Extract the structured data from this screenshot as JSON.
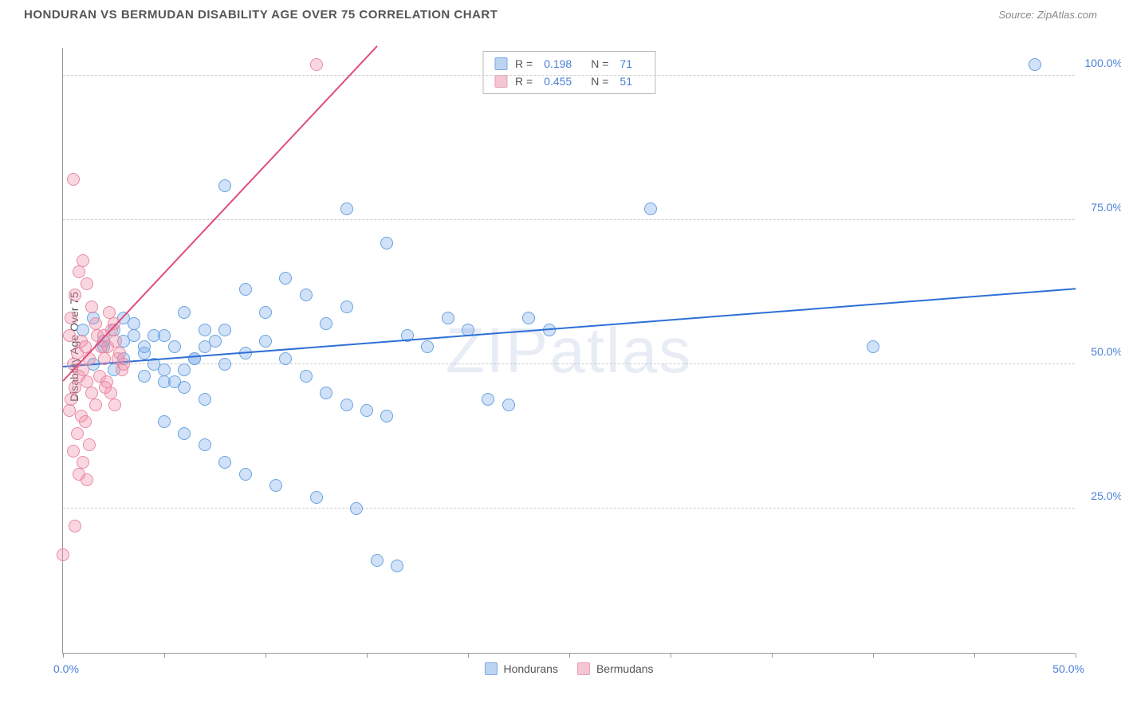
{
  "header": {
    "title": "HONDURAN VS BERMUDAN DISABILITY AGE OVER 75 CORRELATION CHART",
    "source_label": "Source: ",
    "source_name": "ZipAtlas.com"
  },
  "chart": {
    "type": "scatter",
    "y_axis_title": "Disability Age Over 75",
    "xlim": [
      0,
      50
    ],
    "ylim": [
      0,
      105
    ],
    "x_min_label": "0.0%",
    "x_max_label": "50.0%",
    "y_ticks": [
      {
        "v": 25,
        "label": "25.0%"
      },
      {
        "v": 50,
        "label": "50.0%"
      },
      {
        "v": 75,
        "label": "75.0%"
      },
      {
        "v": 100,
        "label": "100.0%"
      }
    ],
    "x_tick_step": 5,
    "grid_color": "#cccccc",
    "axis_color": "#999999",
    "background_color": "#ffffff",
    "watermark_a": "ZIP",
    "watermark_b": "atlas",
    "point_radius": 8,
    "point_stroke_width": 1.2,
    "series": [
      {
        "name": "Hondurans",
        "fill": "rgba(120,170,235,0.35)",
        "stroke": "#6aa3e0",
        "swatch_fill": "#bcd4f2",
        "swatch_stroke": "#7aa8e0",
        "trend": {
          "x1": 0,
          "y1": 49.5,
          "x2": 50,
          "y2": 63,
          "color": "#2d6fd6",
          "width": 2
        },
        "R": "0.198",
        "N": "71",
        "points": [
          [
            48,
            102
          ],
          [
            29,
            77
          ],
          [
            16,
            71
          ],
          [
            14,
            77
          ],
          [
            8,
            81
          ],
          [
            11,
            65
          ],
          [
            10,
            59
          ],
          [
            13,
            57
          ],
          [
            12,
            62
          ],
          [
            9,
            63
          ],
          [
            14,
            60
          ],
          [
            6,
            59
          ],
          [
            7,
            56
          ],
          [
            5,
            55
          ],
          [
            3,
            54
          ],
          [
            4,
            52
          ],
          [
            2,
            53
          ],
          [
            3,
            51
          ],
          [
            1.5,
            50
          ],
          [
            2.5,
            49
          ],
          [
            4,
            48
          ],
          [
            5,
            47
          ],
          [
            6,
            46
          ],
          [
            7,
            44
          ],
          [
            8,
            50
          ],
          [
            9,
            52
          ],
          [
            10,
            54
          ],
          [
            11,
            51
          ],
          [
            12,
            48
          ],
          [
            13,
            45
          ],
          [
            14,
            43
          ],
          [
            15,
            42
          ],
          [
            16,
            41
          ],
          [
            5,
            40
          ],
          [
            6,
            38
          ],
          [
            7,
            36
          ],
          [
            8,
            33
          ],
          [
            9,
            31
          ],
          [
            14.5,
            25
          ],
          [
            10.5,
            29
          ],
          [
            12.5,
            27
          ],
          [
            17,
            55
          ],
          [
            18,
            53
          ],
          [
            19,
            58
          ],
          [
            20,
            56
          ],
          [
            21,
            44
          ],
          [
            22,
            43
          ],
          [
            23,
            58
          ],
          [
            24,
            56
          ],
          [
            15.5,
            16
          ],
          [
            16.5,
            15
          ],
          [
            3.5,
            57
          ],
          [
            4.5,
            55
          ],
          [
            5.5,
            53
          ],
          [
            6.5,
            51
          ],
          [
            40,
            53
          ],
          [
            1,
            56
          ],
          [
            1.5,
            58
          ],
          [
            2,
            54
          ],
          [
            2.5,
            56
          ],
          [
            3,
            58
          ],
          [
            3.5,
            55
          ],
          [
            4,
            53
          ],
          [
            4.5,
            50
          ],
          [
            5,
            49
          ],
          [
            5.5,
            47
          ],
          [
            6,
            49
          ],
          [
            6.5,
            51
          ],
          [
            7,
            53
          ],
          [
            7.5,
            54
          ],
          [
            8,
            56
          ]
        ]
      },
      {
        "name": "Bermudans",
        "fill": "rgba(240,140,165,0.35)",
        "stroke": "#e88aa2",
        "swatch_fill": "#f5c5d2",
        "swatch_stroke": "#e7a0b3",
        "trend": {
          "x1": 0,
          "y1": 47,
          "x2": 15.5,
          "y2": 105,
          "color": "#e04d77",
          "width": 2
        },
        "R": "0.455",
        "N": "51",
        "points": [
          [
            12.5,
            102
          ],
          [
            0.5,
            82
          ],
          [
            1,
            68
          ],
          [
            0.8,
            66
          ],
          [
            1.2,
            64
          ],
          [
            0.6,
            62
          ],
          [
            1.4,
            60
          ],
          [
            0.4,
            58
          ],
          [
            1.6,
            57
          ],
          [
            0.3,
            55
          ],
          [
            0.9,
            54
          ],
          [
            1.1,
            53
          ],
          [
            0.7,
            52
          ],
          [
            1.3,
            51
          ],
          [
            0.5,
            50
          ],
          [
            1,
            49
          ],
          [
            0.8,
            48
          ],
          [
            1.2,
            47
          ],
          [
            0.6,
            46
          ],
          [
            1.4,
            45
          ],
          [
            0.4,
            44
          ],
          [
            1.6,
            43
          ],
          [
            0.3,
            42
          ],
          [
            0.9,
            41
          ],
          [
            1.1,
            40
          ],
          [
            0.7,
            38
          ],
          [
            1.3,
            36
          ],
          [
            0.5,
            35
          ],
          [
            1,
            33
          ],
          [
            0.8,
            31
          ],
          [
            1.2,
            30
          ],
          [
            0.6,
            22
          ],
          [
            0,
            17
          ],
          [
            2,
            55
          ],
          [
            2.2,
            53
          ],
          [
            2.4,
            56
          ],
          [
            2.6,
            54
          ],
          [
            2.8,
            52
          ],
          [
            3,
            50
          ],
          [
            1.8,
            48
          ],
          [
            2.1,
            46
          ],
          [
            2.3,
            59
          ],
          [
            2.5,
            57
          ],
          [
            2.7,
            51
          ],
          [
            2.9,
            49
          ],
          [
            1.7,
            55
          ],
          [
            1.9,
            53
          ],
          [
            2.05,
            51
          ],
          [
            2.15,
            47
          ],
          [
            2.35,
            45
          ],
          [
            2.55,
            43
          ]
        ]
      }
    ]
  },
  "legend_top": {
    "R_label": "R =",
    "N_label": "N ="
  }
}
